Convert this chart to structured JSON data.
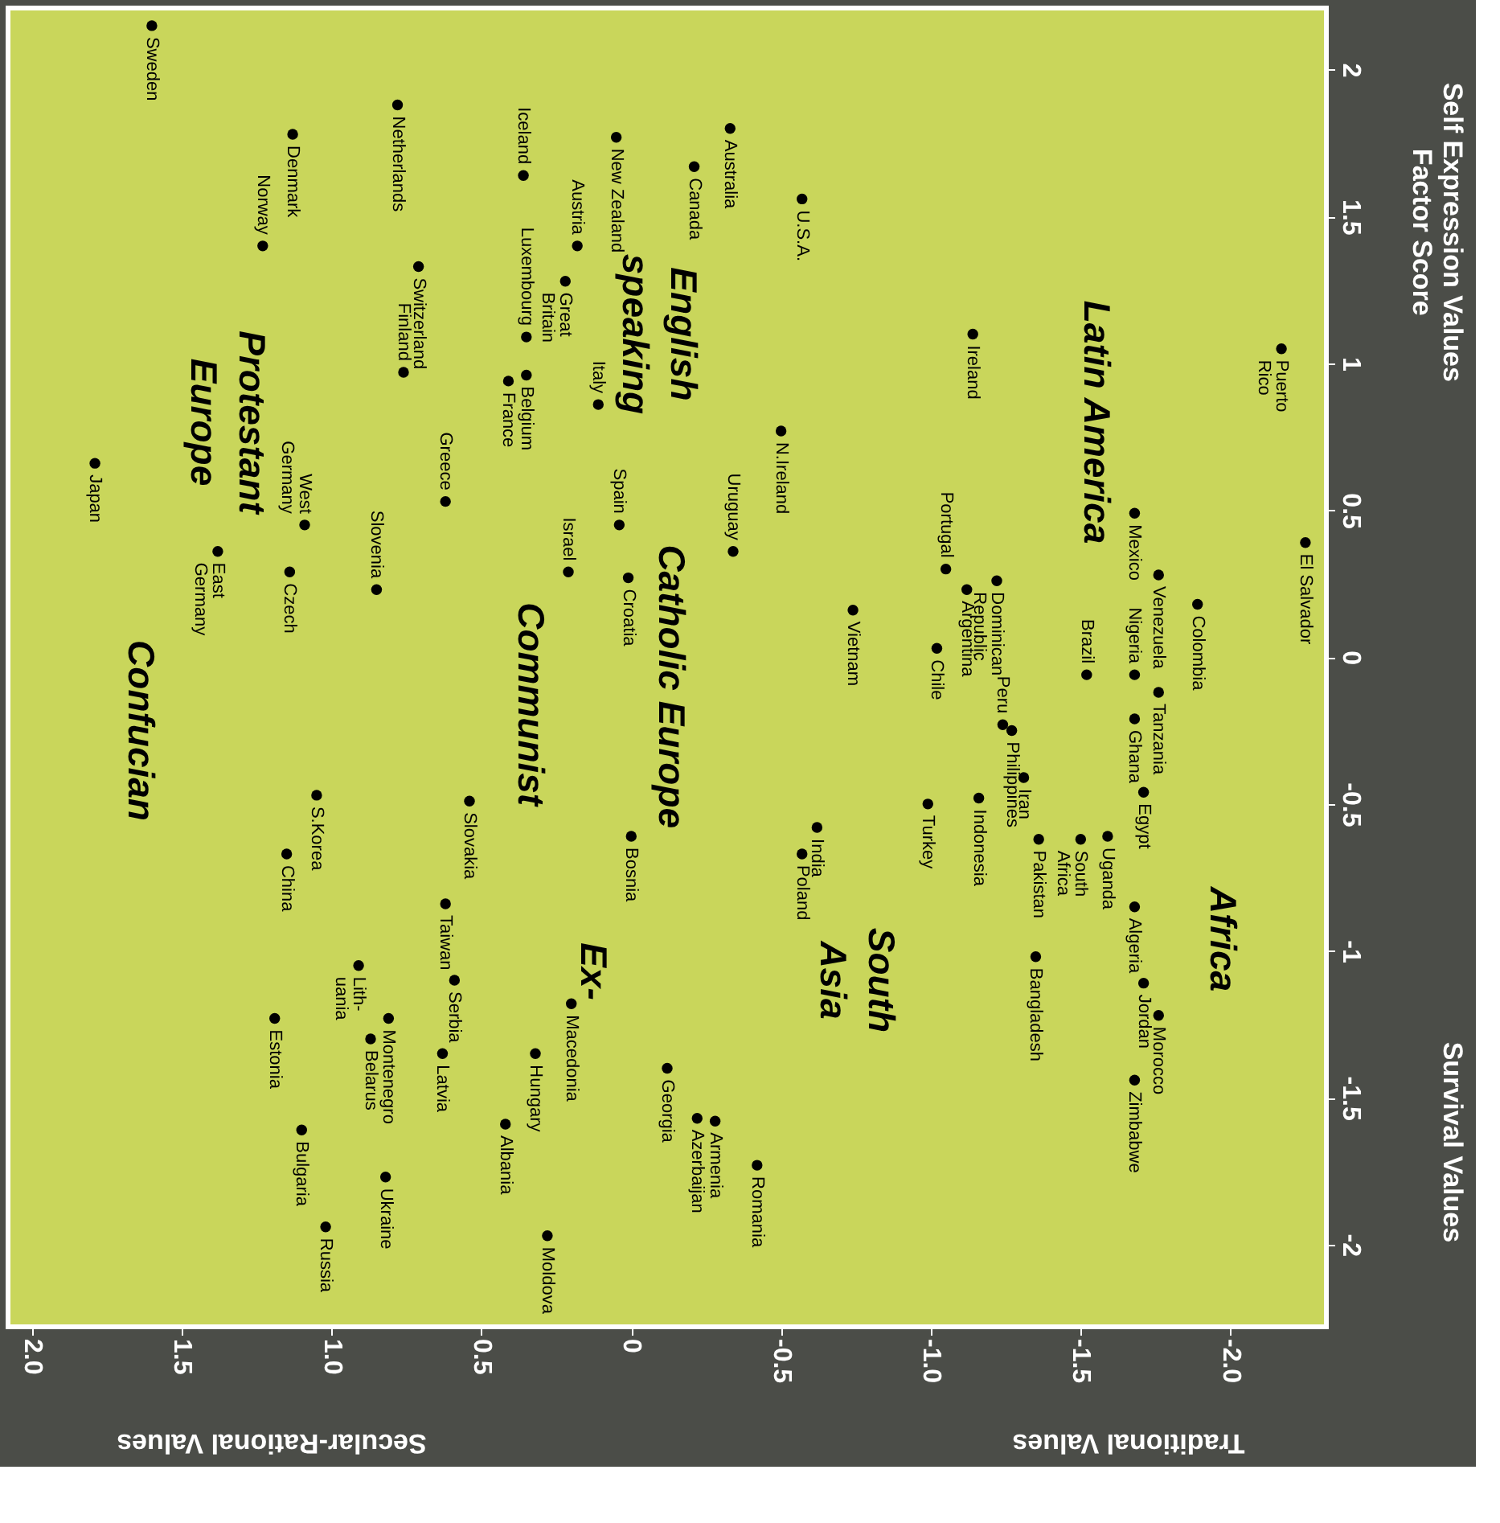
{
  "chart_data": {
    "type": "scatter",
    "color": "#000000",
    "marker": "circle",
    "grid": false,
    "xlim": [
      2.08,
      -2.32
    ],
    "ylim": [
      -2.28,
      2.21
    ],
    "xticks": [
      {
        "value": 2,
        "label": "2.0"
      },
      {
        "value": 1.5,
        "label": "1.5"
      },
      {
        "value": 1,
        "label": "1.0"
      },
      {
        "value": 0.5,
        "label": "0.5"
      },
      {
        "value": 0,
        "label": "0"
      },
      {
        "value": -0.5,
        "label": "-0.5"
      },
      {
        "value": -1,
        "label": "-1.0"
      },
      {
        "value": -1.5,
        "label": "-1.5"
      },
      {
        "value": -2,
        "label": "-2.0"
      }
    ],
    "yticks": [
      {
        "value": 2,
        "label": "2"
      },
      {
        "value": 1.5,
        "label": "1.5"
      },
      {
        "value": 1,
        "label": "1"
      },
      {
        "value": 0.5,
        "label": "0.5"
      },
      {
        "value": 0,
        "label": "0"
      },
      {
        "value": -0.5,
        "label": "-0.5"
      },
      {
        "value": -1,
        "label": "-1"
      },
      {
        "value": -1.5,
        "label": "-1.5"
      },
      {
        "value": -2,
        "label": "-2"
      }
    ],
    "x": [
      1.6,
      1.13,
      0.78,
      0.36,
      1.23,
      0.71,
      0.76,
      0.35,
      0.18,
      0.22,
      0.05,
      -0.21,
      -0.33,
      -0.57,
      -1.14,
      -0.5,
      0.41,
      0.35,
      0.11,
      0.04,
      -0.34,
      1.79,
      1.38,
      1.09,
      1.14,
      0.85,
      0.62,
      0.21,
      0.01,
      -0.74,
      -1.05,
      -1.02,
      -1.12,
      -1.22,
      -1.68,
      -1.76,
      -1.89,
      -2.17,
      -2.25,
      -1.24,
      -1.52,
      -1.68,
      -1.76,
      -1.68,
      -1.71,
      -1.59,
      -1.68,
      -1.5,
      -1.36,
      -1.27,
      -1.31,
      -0.99,
      -1.16,
      -1.35,
      -1.71,
      -1.76,
      -1.68,
      -0.62,
      -0.57,
      0.0,
      0.54,
      1.05,
      1.15,
      0.62,
      0.91,
      0.32,
      0.2,
      -0.12,
      -0.22,
      -0.28,
      -0.42,
      1.19,
      0.87,
      0.81,
      0.59,
      0.63,
      0.42,
      1.1,
      0.82,
      1.02,
      0.28
    ],
    "values": [
      2.15,
      1.78,
      1.88,
      1.64,
      1.4,
      1.33,
      0.97,
      1.09,
      1.4,
      1.28,
      1.77,
      1.67,
      1.8,
      1.56,
      1.1,
      0.77,
      0.94,
      0.96,
      0.86,
      0.45,
      0.36,
      0.66,
      0.36,
      0.45,
      0.29,
      0.23,
      0.53,
      0.29,
      0.27,
      0.16,
      0.3,
      0.03,
      0.23,
      0.26,
      0.49,
      0.28,
      0.18,
      1.05,
      0.39,
      -0.23,
      -0.06,
      -0.06,
      -0.12,
      -0.21,
      -0.46,
      -0.61,
      -0.85,
      -0.62,
      -0.62,
      -0.25,
      -0.41,
      -0.5,
      -0.48,
      -1.02,
      -1.11,
      -1.22,
      -1.44,
      -0.58,
      -0.67,
      -0.61,
      -0.49,
      -0.47,
      -0.67,
      -0.84,
      -1.05,
      -1.35,
      -1.18,
      -1.4,
      -1.57,
      -1.58,
      -1.73,
      -1.23,
      -1.3,
      -1.23,
      -1.1,
      -1.35,
      -1.59,
      -1.61,
      -1.77,
      -1.94,
      -1.97
    ],
    "annotations": [
      "Secular-Rational Values",
      "Traditional Values",
      "Survival Values",
      "Self Expression Values\nFactor Score",
      "Protestant\nEurope",
      "English\nspeaking",
      "Confucian",
      "Communist",
      "Catholic Europe",
      "Ex-",
      "Latin America",
      "South\nAsia",
      "Africa",
      {
        "text": "Sweden",
        "x": 1.6,
        "y": 2.15
      },
      {
        "text": "Denmark",
        "x": 1.13,
        "y": 1.78
      },
      {
        "text": "Netherlands",
        "x": 0.78,
        "y": 1.88
      },
      {
        "text": "Iceland",
        "x": 0.36,
        "y": 1.64
      },
      {
        "text": "Norway",
        "x": 1.23,
        "y": 1.4
      },
      {
        "text": "Switzerland",
        "x": 0.71,
        "y": 1.33
      },
      {
        "text": "Finland",
        "x": 0.76,
        "y": 0.97
      },
      {
        "text": "Luxembourg",
        "x": 0.35,
        "y": 1.09
      },
      {
        "text": "Austria",
        "x": 0.18,
        "y": 1.4
      },
      {
        "text": "Great\nBritain",
        "x": 0.22,
        "y": 1.28
      },
      {
        "text": "New Zealand",
        "x": 0.05,
        "y": 1.77
      },
      {
        "text": "Canada",
        "x": -0.21,
        "y": 1.67
      },
      {
        "text": "Australia",
        "x": -0.33,
        "y": 1.8
      },
      {
        "text": "U.S.A.",
        "x": -0.57,
        "y": 1.56
      },
      {
        "text": "Ireland",
        "x": -1.14,
        "y": 1.1
      },
      {
        "text": "N.Ireland",
        "x": -0.5,
        "y": 0.77
      },
      {
        "text": "France",
        "x": 0.41,
        "y": 0.94
      },
      {
        "text": "Belgium",
        "x": 0.35,
        "y": 0.96
      },
      {
        "text": "Italy",
        "x": 0.11,
        "y": 0.86
      },
      {
        "text": "Spain",
        "x": 0.04,
        "y": 0.45
      },
      {
        "text": "Uruguay",
        "x": -0.34,
        "y": 0.36
      },
      {
        "text": "Japan",
        "x": 1.79,
        "y": 0.66
      },
      {
        "text": "East\nGermany",
        "x": 1.38,
        "y": 0.36
      },
      {
        "text": "West\nGermany",
        "x": 1.09,
        "y": 0.45
      },
      {
        "text": "Czech",
        "x": 1.14,
        "y": 0.29
      },
      {
        "text": "Slovenia",
        "x": 0.85,
        "y": 0.23
      },
      {
        "text": "Greece",
        "x": 0.62,
        "y": 0.53
      },
      {
        "text": "Israel",
        "x": 0.21,
        "y": 0.29
      },
      {
        "text": "Croatia",
        "x": 0.01,
        "y": 0.27
      },
      {
        "text": "Vietnam",
        "x": -0.74,
        "y": 0.16
      },
      {
        "text": "Portugal",
        "x": -1.05,
        "y": 0.3
      },
      {
        "text": "Chile",
        "x": -1.02,
        "y": 0.03
      },
      {
        "text": "Argentina",
        "x": -1.12,
        "y": 0.23
      },
      {
        "text": "Dominican\nRepublic",
        "x": -1.22,
        "y": 0.26
      },
      {
        "text": "Mexico",
        "x": -1.68,
        "y": 0.49
      },
      {
        "text": "Venezuela",
        "x": -1.76,
        "y": 0.28
      },
      {
        "text": "Colombia",
        "x": -1.89,
        "y": 0.18
      },
      {
        "text": "Puerto\nRico",
        "x": -2.17,
        "y": 1.05
      },
      {
        "text": "El Salvador",
        "x": -2.25,
        "y": 0.39
      },
      {
        "text": "Peru",
        "x": -1.24,
        "y": -0.23
      },
      {
        "text": "Brazil",
        "x": -1.52,
        "y": -0.06
      },
      {
        "text": "Nigeria",
        "x": -1.68,
        "y": -0.06
      },
      {
        "text": "Tanzania",
        "x": -1.76,
        "y": -0.12
      },
      {
        "text": "Ghana",
        "x": -1.68,
        "y": -0.21
      },
      {
        "text": "Egypt",
        "x": -1.71,
        "y": -0.46
      },
      {
        "text": "Uganda",
        "x": -1.59,
        "y": -0.61
      },
      {
        "text": "Algeria",
        "x": -1.68,
        "y": -0.85
      },
      {
        "text": "South\nAfrica",
        "x": -1.5,
        "y": -0.62
      },
      {
        "text": "Pakistan",
        "x": -1.36,
        "y": -0.62
      },
      {
        "text": "Philippines",
        "x": -1.27,
        "y": -0.25
      },
      {
        "text": "Iran",
        "x": -1.31,
        "y": -0.41
      },
      {
        "text": "Turkey",
        "x": -0.99,
        "y": -0.5
      },
      {
        "text": "Indonesia",
        "x": -1.16,
        "y": -0.48
      },
      {
        "text": "Bangladesh",
        "x": -1.35,
        "y": -1.02
      },
      {
        "text": "Jordan",
        "x": -1.71,
        "y": -1.11
      },
      {
        "text": "Morocco",
        "x": -1.76,
        "y": -1.22
      },
      {
        "text": "Zimbabwe",
        "x": -1.68,
        "y": -1.44
      },
      {
        "text": "India",
        "x": -0.62,
        "y": -0.58
      },
      {
        "text": "Poland",
        "x": -0.57,
        "y": -0.67
      },
      {
        "text": "Bosnia",
        "x": 0.0,
        "y": -0.61
      },
      {
        "text": "Slovakia",
        "x": 0.54,
        "y": -0.49
      },
      {
        "text": "S.Korea",
        "x": 1.05,
        "y": -0.47
      },
      {
        "text": "China",
        "x": 1.15,
        "y": -0.67
      },
      {
        "text": "Taiwan",
        "x": 0.62,
        "y": -0.84
      },
      {
        "text": "Lith-\nuania",
        "x": 0.91,
        "y": -1.05
      },
      {
        "text": "Hungary",
        "x": 0.32,
        "y": -1.35
      },
      {
        "text": "Macedonia",
        "x": 0.2,
        "y": -1.18
      },
      {
        "text": "Georgia",
        "x": -0.12,
        "y": -1.4
      },
      {
        "text": "Azerbaijan",
        "x": -0.22,
        "y": -1.57
      },
      {
        "text": "Armenia",
        "x": -0.28,
        "y": -1.58
      },
      {
        "text": "Romania",
        "x": -0.42,
        "y": -1.73
      },
      {
        "text": "Estonia",
        "x": 1.19,
        "y": -1.23
      },
      {
        "text": "Belarus",
        "x": 0.87,
        "y": -1.3
      },
      {
        "text": "Montenegro",
        "x": 0.81,
        "y": -1.23
      },
      {
        "text": "Serbia",
        "x": 0.59,
        "y": -1.1
      },
      {
        "text": "Latvia",
        "x": 0.63,
        "y": -1.35
      },
      {
        "text": "Albania",
        "x": 0.42,
        "y": -1.59
      },
      {
        "text": "Bulgaria",
        "x": 1.1,
        "y": -1.61
      },
      {
        "text": "Ukraine",
        "x": 0.82,
        "y": -1.77
      },
      {
        "text": "Russia",
        "x": 1.02,
        "y": -1.94
      },
      {
        "text": "Moldova",
        "x": 0.28,
        "y": -1.97
      }
    ]
  }
}
